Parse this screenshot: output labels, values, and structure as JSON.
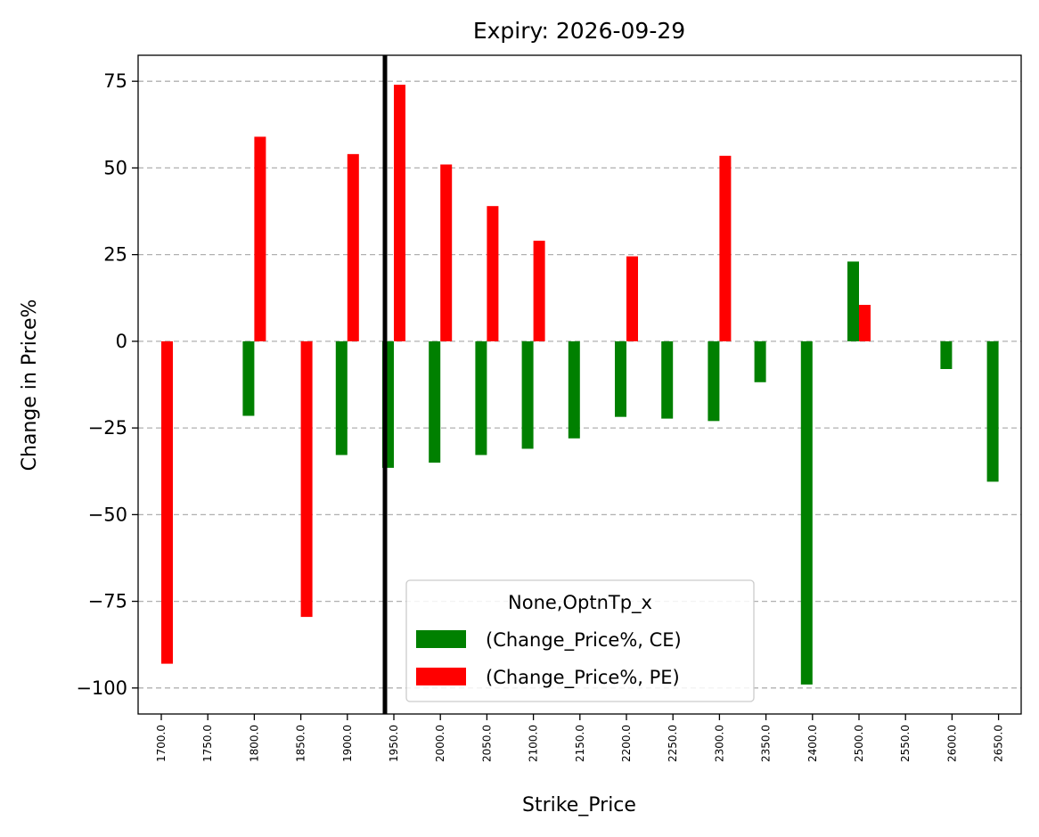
{
  "chart_data": {
    "type": "bar",
    "title": "Expiry: 2026-09-29",
    "xlabel": "Strike_Price",
    "ylabel": "Change in Price%",
    "categories": [
      "1700.0",
      "1750.0",
      "1800.0",
      "1850.0",
      "1900.0",
      "1950.0",
      "2000.0",
      "2050.0",
      "2100.0",
      "2150.0",
      "2200.0",
      "2250.0",
      "2300.0",
      "2350.0",
      "2400.0",
      "2500.0",
      "2550.0",
      "2600.0",
      "2650.0"
    ],
    "series": [
      {
        "name": "(Change_Price%, CE)",
        "color": "#008000",
        "values": [
          null,
          null,
          -21.5,
          null,
          -32.8,
          -36.5,
          -35.0,
          -32.8,
          -31.0,
          -28.0,
          -21.8,
          -22.3,
          -23.0,
          -11.8,
          -99.0,
          23.0,
          null,
          -8.0,
          -40.5
        ]
      },
      {
        "name": "(Change_Price%, PE)",
        "color": "#ff0000",
        "values": [
          -93.0,
          null,
          59.0,
          -79.5,
          54.0,
          74.0,
          51.0,
          39.0,
          29.0,
          null,
          24.5,
          null,
          53.5,
          null,
          null,
          10.5,
          null,
          null,
          null
        ]
      }
    ],
    "ylim": [
      -107.5,
      82.5
    ],
    "yticks": [
      -100,
      -75,
      -50,
      -25,
      0,
      25,
      50,
      75
    ],
    "ytick_labels": [
      "−100",
      "−75",
      "−50",
      "−25",
      "0",
      "25",
      "50",
      "75"
    ],
    "vertical_line": {
      "x_category": "1950.0",
      "color": "#000000"
    },
    "grid": {
      "y": true,
      "style": "dashed"
    },
    "legend": {
      "title": "None,OptnTp_x",
      "placement": "lower-center"
    }
  }
}
